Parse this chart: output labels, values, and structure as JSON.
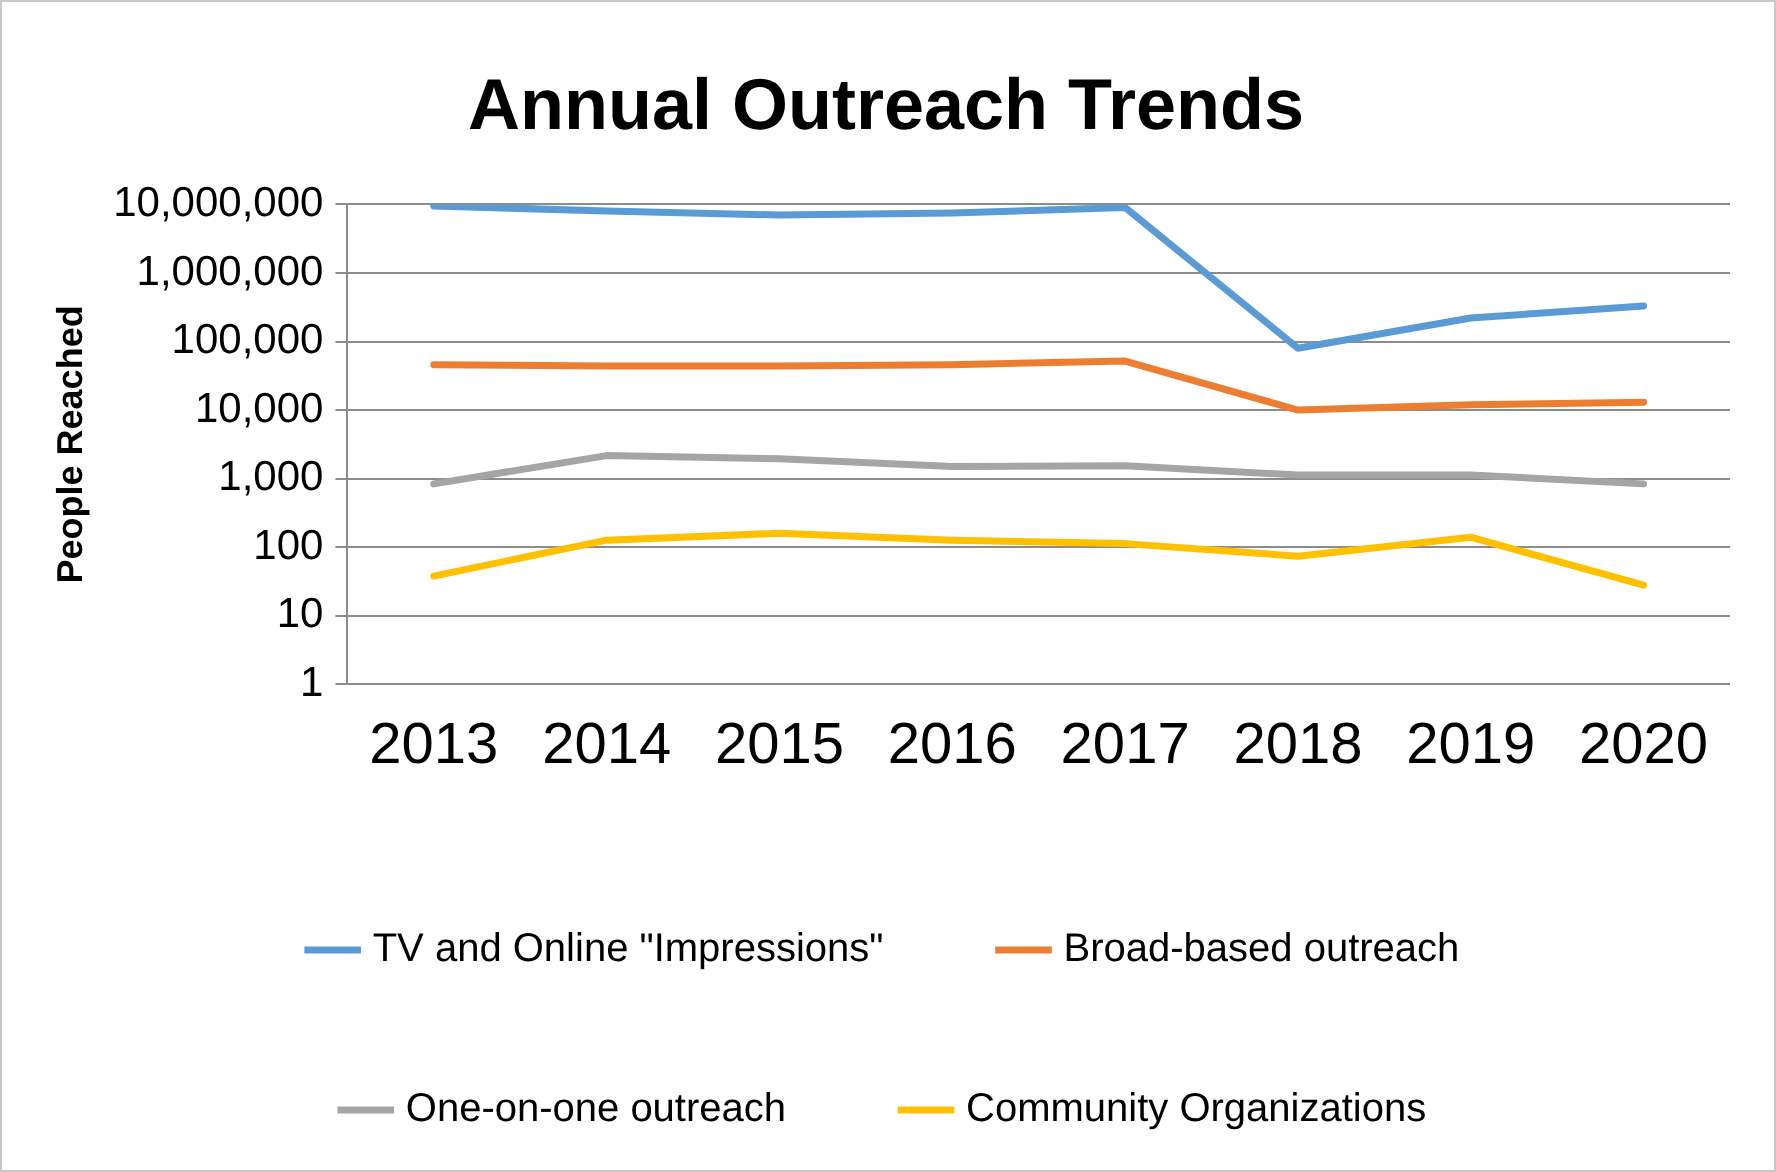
{
  "chart_data": {
    "type": "line",
    "title": "Annual Outreach Trends",
    "ylabel": "People Reached",
    "categories": [
      "2013",
      "2014",
      "2015",
      "2016",
      "2017",
      "2018",
      "2019",
      "2020"
    ],
    "series": [
      {
        "name": "TV and Online \"Impressions\"",
        "color": "#5b9bd5",
        "values": [
          9500000,
          8000000,
          7000000,
          7500000,
          9000000,
          80000,
          220000,
          330000
        ]
      },
      {
        "name": "Broad-based outreach",
        "color": "#ed7d31",
        "values": [
          46000,
          44000,
          44000,
          46000,
          52000,
          10000,
          12000,
          13000
        ]
      },
      {
        "name": "One-on-one outreach",
        "color": "#a5a5a5",
        "values": [
          840,
          2170,
          1950,
          1500,
          1550,
          1130,
          1130,
          840
        ]
      },
      {
        "name": "Community Organizations",
        "color": "#ffc000",
        "values": [
          38,
          127,
          160,
          127,
          113,
          74,
          140,
          28
        ]
      }
    ],
    "log": "y",
    "ylim": [
      1,
      10000000
    ],
    "yticks": [
      {
        "value": 1,
        "label": "1"
      },
      {
        "value": 10,
        "label": "10"
      },
      {
        "value": 100,
        "label": "100"
      },
      {
        "value": 1000,
        "label": "1,000"
      },
      {
        "value": 10000,
        "label": "10,000"
      },
      {
        "value": 100000,
        "label": "100,000"
      },
      {
        "value": 1000000,
        "label": "1,000,000"
      },
      {
        "value": 10000000,
        "label": "10,000,000"
      }
    ],
    "grid": "y",
    "legend": "bottom",
    "marker": "none",
    "line_style": "solid"
  }
}
